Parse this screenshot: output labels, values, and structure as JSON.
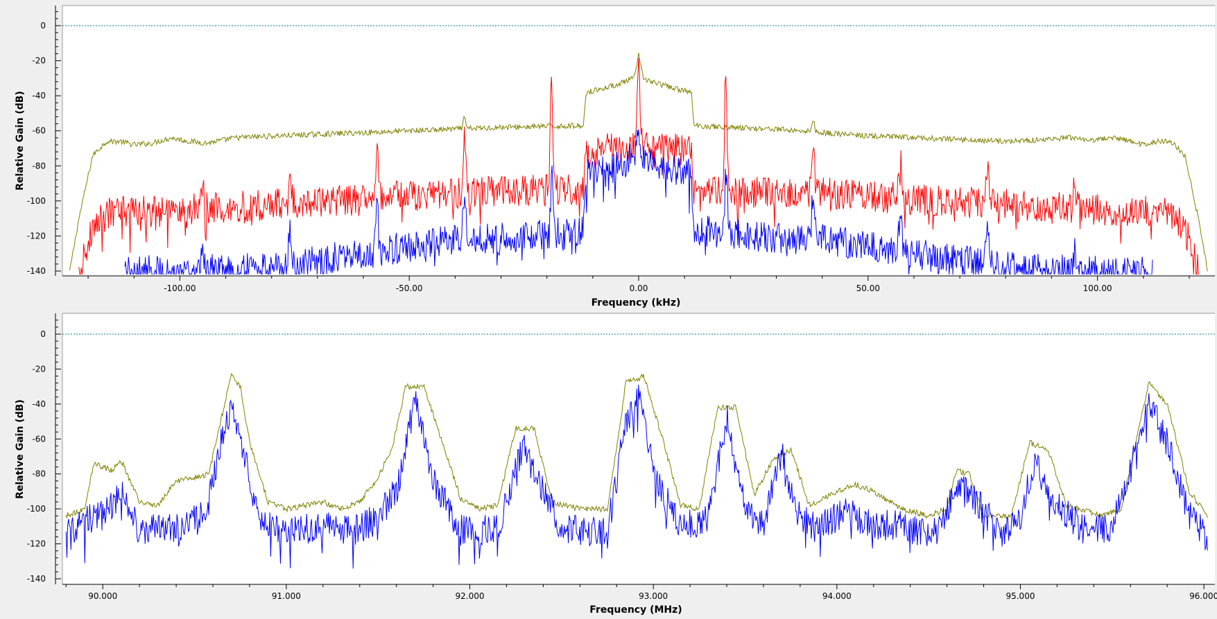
{
  "chart_data": [
    {
      "type": "line",
      "xlabel": "Frequency (kHz)",
      "ylabel": "Relative Gain (dB)",
      "xlim": [
        -125.6,
        125.6
      ],
      "ylim": [
        -140,
        12
      ],
      "x_ticks": [
        -100,
        -50,
        0,
        50,
        100
      ],
      "x_tick_labels": [
        "-100.00",
        "-50.00",
        "0.00",
        "50.00",
        "100.00"
      ],
      "y_ticks": [
        0,
        -20,
        -40,
        -60,
        -80,
        -100,
        -120,
        -140
      ],
      "y_tick_labels": [
        "0",
        "-20",
        "-40",
        "-60",
        "-80",
        "-100",
        "-120",
        "-140"
      ],
      "reference_line_y": 0,
      "reference_line_color": "#007a8c",
      "grid": false,
      "series": [
        {
          "color": "#808000",
          "values_description_points": [
            [
              -124.0,
              -140
            ],
            [
              -122.0,
              -110
            ],
            [
              -119.0,
              -74
            ],
            [
              -116.0,
              -66
            ],
            [
              -113.0,
              -66
            ],
            [
              -110.0,
              -68
            ],
            [
              -106.0,
              -67
            ],
            [
              -102.0,
              -64
            ],
            [
              -98.0,
              -66
            ],
            [
              -94.0,
              -67
            ],
            [
              -88.0,
              -64
            ],
            [
              -80.0,
              -63
            ],
            [
              -70.0,
              -62
            ],
            [
              -60.0,
              -61
            ],
            [
              -50.0,
              -60
            ],
            [
              -40.0,
              -59
            ],
            [
              -30.0,
              -58
            ],
            [
              -20.0,
              -57.5
            ],
            [
              -12.0,
              -57
            ],
            [
              -11.5,
              -38
            ],
            [
              -8.0,
              -36
            ],
            [
              -4.0,
              -33
            ],
            [
              -1.0,
              -30
            ],
            [
              0.0,
              -17
            ],
            [
              1.0,
              -30
            ],
            [
              4.0,
              -33
            ],
            [
              8.0,
              -36
            ],
            [
              11.5,
              -38
            ],
            [
              12.0,
              -57
            ],
            [
              20.0,
              -58
            ],
            [
              30.0,
              -59
            ],
            [
              40.0,
              -61
            ],
            [
              50.0,
              -63
            ],
            [
              60.0,
              -64
            ],
            [
              70.0,
              -65
            ],
            [
              80.0,
              -66
            ],
            [
              88.0,
              -65
            ],
            [
              94.0,
              -64
            ],
            [
              98.0,
              -66
            ],
            [
              102.0,
              -64
            ],
            [
              106.0,
              -65
            ],
            [
              110.0,
              -68
            ],
            [
              113.0,
              -66
            ],
            [
              116.0,
              -66
            ],
            [
              119.0,
              -74
            ],
            [
              122.0,
              -110
            ],
            [
              124.0,
              -140
            ]
          ],
          "spikes": [
            [
              -38.0,
              -53
            ],
            [
              38.0,
              -53
            ]
          ]
        },
        {
          "color": "#ff0000",
          "values_description_points": [
            [
              -122.0,
              -140
            ],
            [
              -119.0,
              -115
            ],
            [
              -115.0,
              -106
            ],
            [
              -105.0,
              -106
            ],
            [
              -95.0,
              -104
            ],
            [
              -85.0,
              -103
            ],
            [
              -75.0,
              -101
            ],
            [
              -65.0,
              -100
            ],
            [
              -55.0,
              -98
            ],
            [
              -45.0,
              -96
            ],
            [
              -35.0,
              -95
            ],
            [
              -25.0,
              -94
            ],
            [
              -15.0,
              -93
            ],
            [
              -12.0,
              -92
            ],
            [
              -11.5,
              -72
            ],
            [
              -8.0,
              -70
            ],
            [
              -4.0,
              -69
            ],
            [
              0.0,
              -66
            ],
            [
              4.0,
              -69
            ],
            [
              8.0,
              -70
            ],
            [
              11.5,
              -72
            ],
            [
              12.0,
              -93
            ],
            [
              25.0,
              -95
            ],
            [
              35.0,
              -95
            ],
            [
              45.0,
              -96
            ],
            [
              55.0,
              -98
            ],
            [
              65.0,
              -100
            ],
            [
              75.0,
              -101
            ],
            [
              85.0,
              -103
            ],
            [
              95.0,
              -104
            ],
            [
              105.0,
              -106
            ],
            [
              115.0,
              -106
            ],
            [
              119.0,
              -115
            ],
            [
              122.0,
              -140
            ]
          ],
          "spikes": [
            [
              -95.0,
              -90
            ],
            [
              -76.0,
              -81
            ],
            [
              -57.0,
              -73
            ],
            [
              -38.0,
              -65
            ],
            [
              -19.0,
              -28
            ],
            [
              0.0,
              -22
            ],
            [
              19.0,
              -28
            ],
            [
              38.0,
              -66
            ],
            [
              57.0,
              -73
            ],
            [
              76.0,
              -82
            ],
            [
              95.0,
              -91
            ]
          ]
        },
        {
          "color": "#0000ff",
          "values_description_points": [
            [
              -112.0,
              -140
            ],
            [
              -100.0,
              -140
            ],
            [
              -90.0,
              -139
            ],
            [
              -80.0,
              -137
            ],
            [
              -70.0,
              -134
            ],
            [
              -60.0,
              -130
            ],
            [
              -50.0,
              -126
            ],
            [
              -40.0,
              -122
            ],
            [
              -30.0,
              -121
            ],
            [
              -20.0,
              -119
            ],
            [
              -12.0,
              -116
            ],
            [
              -11.5,
              -85
            ],
            [
              -8.0,
              -82
            ],
            [
              -4.0,
              -80
            ],
            [
              0.0,
              -72
            ],
            [
              4.0,
              -80
            ],
            [
              8.0,
              -82
            ],
            [
              11.5,
              -85
            ],
            [
              12.0,
              -116
            ],
            [
              20.0,
              -119
            ],
            [
              30.0,
              -121
            ],
            [
              40.0,
              -122
            ],
            [
              50.0,
              -126
            ],
            [
              60.0,
              -130
            ],
            [
              70.0,
              -134
            ],
            [
              80.0,
              -137
            ],
            [
              90.0,
              -139
            ],
            [
              100.0,
              -140
            ],
            [
              112.0,
              -140
            ]
          ],
          "spikes": [
            [
              -95.0,
              -128
            ],
            [
              -76.0,
              -116
            ],
            [
              -57.0,
              -103
            ],
            [
              -38.0,
              -96
            ],
            [
              -19.0,
              -76
            ],
            [
              0.0,
              -64
            ],
            [
              19.0,
              -76
            ],
            [
              38.0,
              -96
            ],
            [
              57.0,
              -103
            ],
            [
              76.0,
              -117
            ],
            [
              95.0,
              -128
            ]
          ]
        }
      ]
    },
    {
      "type": "line",
      "xlabel": "Frequency (MHz)",
      "ylabel": "Relative Gain (dB)",
      "xlim": [
        89.78,
        96.06
      ],
      "ylim": [
        -140,
        12
      ],
      "x_ticks": [
        90,
        91,
        92,
        93,
        94,
        95,
        96
      ],
      "x_tick_labels": [
        "90.000",
        "91.000",
        "92.000",
        "93.000",
        "94.000",
        "95.000",
        "96.000"
      ],
      "y_ticks": [
        0,
        -20,
        -40,
        -60,
        -80,
        -100,
        -120,
        -140
      ],
      "y_tick_labels": [
        "0",
        "-20",
        "-40",
        "-60",
        "-80",
        "-100",
        "-120",
        "-140"
      ],
      "reference_line_y": 0,
      "reference_line_color": "#007a8c",
      "grid": false,
      "series": [
        {
          "color": "#808000",
          "values_description_points": [
            [
              89.8,
              -104
            ],
            [
              89.9,
              -100
            ],
            [
              89.95,
              -74
            ],
            [
              90.0,
              -76
            ],
            [
              90.05,
              -78
            ],
            [
              90.1,
              -72
            ],
            [
              90.2,
              -96
            ],
            [
              90.3,
              -98
            ],
            [
              90.4,
              -84
            ],
            [
              90.5,
              -82
            ],
            [
              90.58,
              -80
            ],
            [
              90.62,
              -60
            ],
            [
              90.7,
              -24
            ],
            [
              90.75,
              -30
            ],
            [
              90.8,
              -62
            ],
            [
              90.9,
              -96
            ],
            [
              91.0,
              -100
            ],
            [
              91.1,
              -98
            ],
            [
              91.2,
              -96
            ],
            [
              91.3,
              -100
            ],
            [
              91.4,
              -96
            ],
            [
              91.5,
              -82
            ],
            [
              91.58,
              -64
            ],
            [
              91.65,
              -30
            ],
            [
              91.75,
              -30
            ],
            [
              91.85,
              -62
            ],
            [
              91.95,
              -94
            ],
            [
              92.05,
              -100
            ],
            [
              92.15,
              -98
            ],
            [
              92.25,
              -54
            ],
            [
              92.35,
              -54
            ],
            [
              92.45,
              -96
            ],
            [
              92.6,
              -100
            ],
            [
              92.75,
              -100
            ],
            [
              92.85,
              -28
            ],
            [
              92.95,
              -24
            ],
            [
              93.05,
              -60
            ],
            [
              93.15,
              -98
            ],
            [
              93.25,
              -100
            ],
            [
              93.35,
              -42
            ],
            [
              93.45,
              -42
            ],
            [
              93.55,
              -92
            ],
            [
              93.65,
              -72
            ],
            [
              93.75,
              -66
            ],
            [
              93.85,
              -98
            ],
            [
              94.0,
              -90
            ],
            [
              94.1,
              -86
            ],
            [
              94.2,
              -90
            ],
            [
              94.35,
              -100
            ],
            [
              94.5,
              -104
            ],
            [
              94.6,
              -100
            ],
            [
              94.65,
              -78
            ],
            [
              94.72,
              -80
            ],
            [
              94.8,
              -104
            ],
            [
              94.95,
              -104
            ],
            [
              95.05,
              -62
            ],
            [
              95.15,
              -66
            ],
            [
              95.25,
              -98
            ],
            [
              95.45,
              -104
            ],
            [
              95.55,
              -100
            ],
            [
              95.7,
              -28
            ],
            [
              95.8,
              -40
            ],
            [
              95.92,
              -90
            ],
            [
              96.02,
              -104
            ]
          ],
          "spikes": []
        },
        {
          "color": "#0000ff",
          "values_description_points": [
            [
              89.8,
              -116
            ],
            [
              89.9,
              -105
            ],
            [
              90.0,
              -104
            ],
            [
              90.05,
              -98
            ],
            [
              90.1,
              -90
            ],
            [
              90.2,
              -112
            ],
            [
              90.4,
              -110
            ],
            [
              90.55,
              -104
            ],
            [
              90.65,
              -60
            ],
            [
              90.7,
              -40
            ],
            [
              90.78,
              -70
            ],
            [
              90.85,
              -108
            ],
            [
              91.0,
              -114
            ],
            [
              91.2,
              -110
            ],
            [
              91.4,
              -112
            ],
            [
              91.5,
              -104
            ],
            [
              91.6,
              -90
            ],
            [
              91.7,
              -38
            ],
            [
              91.8,
              -85
            ],
            [
              91.95,
              -112
            ],
            [
              92.15,
              -112
            ],
            [
              92.3,
              -62
            ],
            [
              92.38,
              -86
            ],
            [
              92.5,
              -112
            ],
            [
              92.75,
              -114
            ],
            [
              92.85,
              -50
            ],
            [
              92.92,
              -32
            ],
            [
              93.0,
              -80
            ],
            [
              93.15,
              -112
            ],
            [
              93.3,
              -104
            ],
            [
              93.4,
              -48
            ],
            [
              93.5,
              -100
            ],
            [
              93.6,
              -108
            ],
            [
              93.7,
              -68
            ],
            [
              93.78,
              -102
            ],
            [
              93.9,
              -112
            ],
            [
              94.05,
              -100
            ],
            [
              94.15,
              -108
            ],
            [
              94.35,
              -110
            ],
            [
              94.55,
              -114
            ],
            [
              94.65,
              -86
            ],
            [
              94.75,
              -95
            ],
            [
              94.9,
              -114
            ],
            [
              95.0,
              -104
            ],
            [
              95.08,
              -70
            ],
            [
              95.15,
              -94
            ],
            [
              95.35,
              -112
            ],
            [
              95.5,
              -110
            ],
            [
              95.6,
              -78
            ],
            [
              95.7,
              -40
            ],
            [
              95.8,
              -62
            ],
            [
              95.92,
              -104
            ],
            [
              96.02,
              -116
            ]
          ],
          "spikes": []
        }
      ]
    }
  ]
}
